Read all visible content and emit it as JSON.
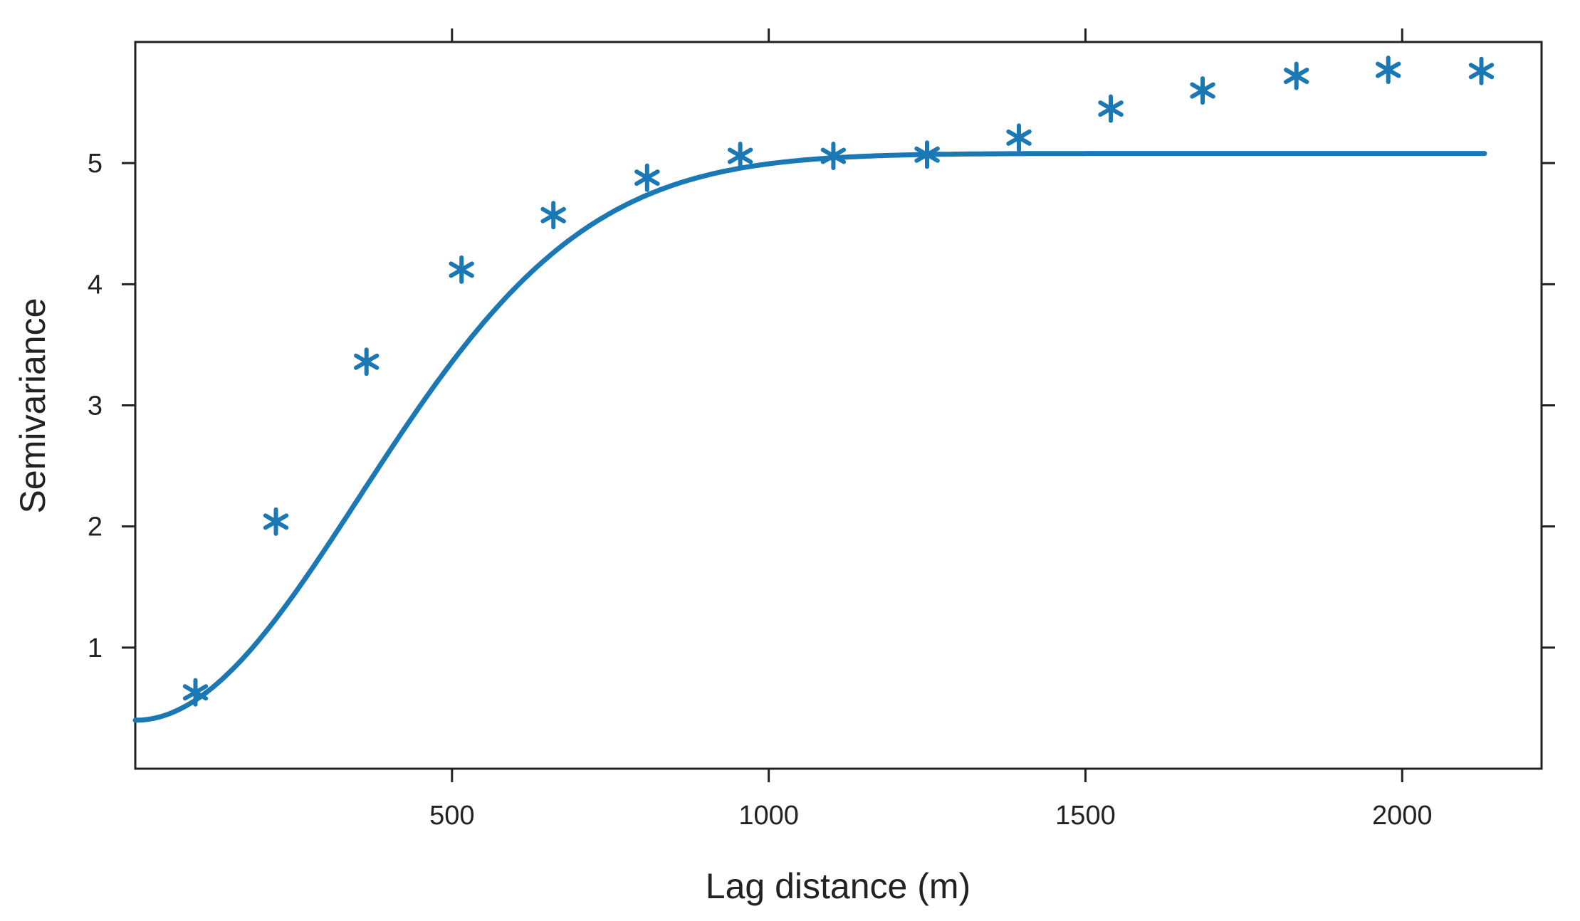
{
  "chart_data": {
    "type": "scatter",
    "title": "",
    "xlabel": "Lag distance (m)",
    "ylabel": "Semivariance",
    "xlim": [
      0,
      2220
    ],
    "ylim": [
      0,
      6
    ],
    "x_ticks": [
      500,
      1000,
      1500,
      2000
    ],
    "y_ticks": [
      1,
      2,
      3,
      4,
      5
    ],
    "grid": false,
    "legend": "none",
    "colors": {
      "series": "#1a78b4",
      "axis": "#222222"
    },
    "series": [
      {
        "kind": "points",
        "marker": "asterisk",
        "x": [
          95,
          222,
          365,
          515,
          660,
          808,
          955,
          1102,
          1250,
          1395,
          1540,
          1685,
          1833,
          1978,
          2125
        ],
        "y": [
          0.63,
          2.04,
          3.36,
          4.12,
          4.57,
          4.88,
          5.06,
          5.06,
          5.07,
          5.21,
          5.45,
          5.6,
          5.72,
          5.77,
          5.76
        ]
      },
      {
        "kind": "line",
        "model": "gaussian",
        "nugget": 0.4,
        "sill": 5.08,
        "range": 500,
        "x_range": [
          0,
          2130
        ]
      }
    ]
  }
}
